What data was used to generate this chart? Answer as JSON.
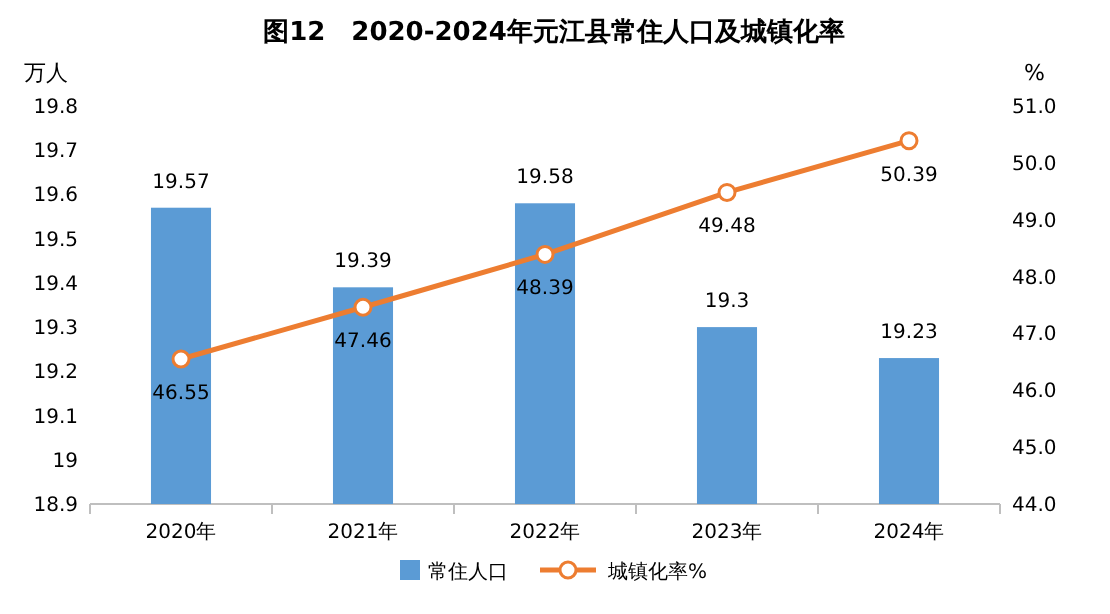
{
  "chart_data": {
    "type": "bar",
    "title": "图12　2020-2024年元江县常住人口及城镇化率",
    "ylabel": "万人",
    "y2label": "%",
    "categories": [
      "2020年",
      "2021年",
      "2022年",
      "2023年",
      "2024年"
    ],
    "series": [
      {
        "name": "常住人口",
        "color": "#5b9bd5",
        "values": [
          19.57,
          19.39,
          19.58,
          19.3,
          19.23
        ]
      },
      {
        "name": "城镇化率%",
        "type": "line",
        "axis": "y2",
        "color": "#ed7d31",
        "marker": "circle",
        "values": [
          46.55,
          47.46,
          48.39,
          49.48,
          50.39
        ]
      }
    ],
    "ylim": [
      18.9,
      19.8
    ],
    "yticks": [
      18.9,
      19,
      19.1,
      19.2,
      19.3,
      19.4,
      19.5,
      19.6,
      19.7,
      19.8
    ],
    "y2lim": [
      44,
      51
    ],
    "y2ticks": [
      {
        "value": 44,
        "label": "44.0"
      },
      {
        "value": 45,
        "label": "45.0"
      },
      {
        "value": 46,
        "label": "46.0"
      },
      {
        "value": 47,
        "label": "47.0"
      },
      {
        "value": 48,
        "label": "48.0"
      },
      {
        "value": 49,
        "label": "49.0"
      },
      {
        "value": 50,
        "label": "50.0"
      },
      {
        "value": 51,
        "label": "51.0"
      }
    ],
    "data_labels": true,
    "legend": "bottom",
    "grid": false
  }
}
